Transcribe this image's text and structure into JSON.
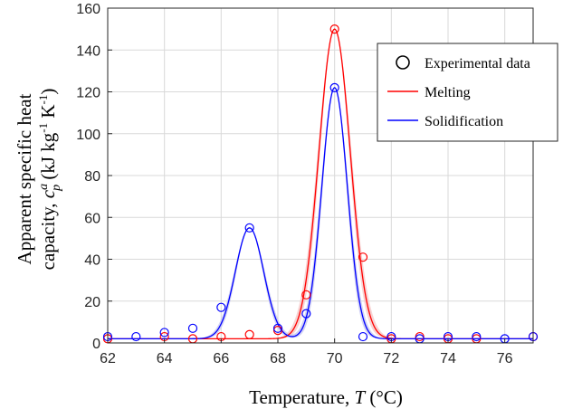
{
  "chart_data": {
    "type": "line",
    "xlabel_prefix": "Temperature, ",
    "xlabel_var": "T",
    "xlabel_unit": " (°C)",
    "ylabel_line1": "Apparent specific heat",
    "ylabel_line2_prefix": "capacity, ",
    "ylabel_line2_suffix": " (kJ kg",
    "ylabel_line2_exp1": "-1",
    "ylabel_line2_mid": " K",
    "ylabel_line2_exp2": "-1",
    "ylabel_line2_end": ")",
    "xlim": [
      62,
      77
    ],
    "ylim": [
      0,
      160
    ],
    "xticks": [
      62,
      64,
      66,
      68,
      70,
      72,
      74,
      76
    ],
    "yticks": [
      0,
      20,
      40,
      60,
      80,
      100,
      120,
      140,
      160
    ],
    "grid": true,
    "legend_position": "top-right",
    "legend": {
      "experimental": "Experimental data",
      "melting": "Melting",
      "solidification": "Solidification"
    },
    "colors": {
      "melting": "#ff0000",
      "solidification": "#0000ff",
      "solidification_band": "#c8c8f0",
      "melting_band": "#f5c8c8",
      "grid": "#d9d9d9",
      "axis": "#262626"
    },
    "series": [
      {
        "name": "Melting",
        "kind": "experimental",
        "x": [
          62,
          64,
          65,
          66,
          67,
          68,
          69,
          70,
          71,
          72,
          73,
          74,
          75,
          77
        ],
        "y": [
          2,
          3,
          2,
          3,
          4,
          6,
          23,
          150,
          41,
          2,
          3,
          2,
          2,
          3
        ]
      },
      {
        "name": "Solidification",
        "kind": "experimental",
        "x": [
          62,
          63,
          64,
          65,
          66,
          67,
          68,
          69,
          70,
          71,
          72,
          73,
          74,
          75,
          76,
          77
        ],
        "y": [
          3,
          3,
          5,
          7,
          17,
          55,
          7,
          14,
          122,
          3,
          3,
          2,
          3,
          3,
          2,
          3
        ]
      },
      {
        "name": "Melting",
        "kind": "fit",
        "baseline": 2,
        "peaks": [
          {
            "center": 70.0,
            "height": 148,
            "sigma": 0.55
          }
        ]
      },
      {
        "name": "Solidification",
        "kind": "fit",
        "baseline": 2,
        "peaks": [
          {
            "center": 67.0,
            "height": 53,
            "sigma": 0.5
          },
          {
            "center": 70.0,
            "height": 120,
            "sigma": 0.45
          }
        ]
      }
    ]
  }
}
